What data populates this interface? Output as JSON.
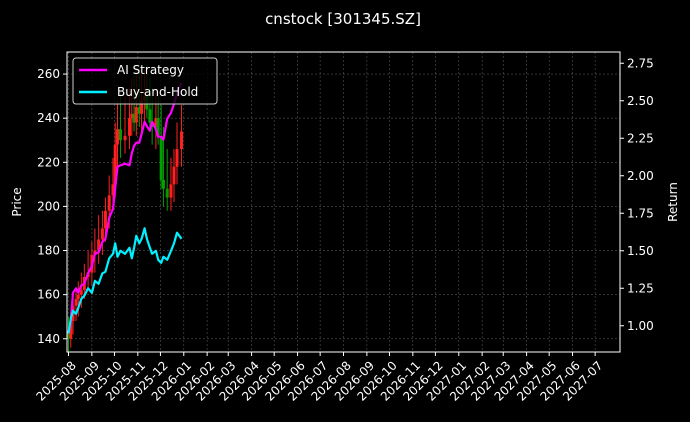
{
  "chart_data": {
    "type": "line",
    "title": "cnstock [301345.SZ]",
    "ylabel_left": "Price",
    "ylabel_right": "Return",
    "ylim_left": [
      134,
      270
    ],
    "ylim_right": [
      0.825,
      2.825
    ],
    "yticks_left": [
      140,
      160,
      180,
      200,
      220,
      240,
      260
    ],
    "yticks_right": [
      "1.00",
      "1.25",
      "1.50",
      "1.75",
      "2.00",
      "2.25",
      "2.50",
      "2.75"
    ],
    "xticks": [
      "2025-08",
      "2025-09",
      "2025-10",
      "2025-11",
      "2025-12",
      "2026-01",
      "2026-02",
      "2026-03",
      "2026-04",
      "2026-05",
      "2026-06",
      "2026-07",
      "2026-08",
      "2026-09",
      "2026-10",
      "2026-11",
      "2026-12",
      "2027-01",
      "2027-02",
      "2027-03",
      "2027-04",
      "2027-05",
      "2027-06",
      "2027-07"
    ],
    "grid": true,
    "legend_position": "top-left",
    "colors": {
      "background": "#000000",
      "ai": "#ff00ff",
      "bh": "#00f0ff",
      "up": "#ff2020",
      "down": "#00a000",
      "grid": "#555555"
    },
    "series": [
      {
        "name": "AI Strategy",
        "axis": "right",
        "x": [
          "2025-08-01",
          "2025-08-04",
          "2025-08-07",
          "2025-08-11",
          "2025-08-14",
          "2025-08-18",
          "2025-08-22",
          "2025-08-27",
          "2025-09-01",
          "2025-09-05",
          "2025-09-10",
          "2025-09-15",
          "2025-09-19",
          "2025-09-24",
          "2025-09-29",
          "2025-10-02",
          "2025-10-05",
          "2025-10-09",
          "2025-10-15",
          "2025-10-21",
          "2025-10-24",
          "2025-10-27",
          "2025-10-30",
          "2025-11-03",
          "2025-11-06",
          "2025-11-10",
          "2025-11-13",
          "2025-11-17",
          "2025-11-20",
          "2025-11-25",
          "2025-11-28",
          "2025-12-02",
          "2025-12-05",
          "2025-12-10",
          "2025-12-15",
          "2025-12-19",
          "2025-12-23",
          "2025-12-29"
        ],
        "values": [
          0.95,
          1.03,
          1.22,
          1.25,
          1.22,
          1.27,
          1.28,
          1.35,
          1.4,
          1.48,
          1.49,
          1.56,
          1.58,
          1.72,
          1.78,
          1.92,
          2.06,
          2.07,
          2.08,
          2.07,
          2.15,
          2.2,
          2.22,
          2.22,
          2.28,
          2.36,
          2.33,
          2.3,
          2.36,
          2.31,
          2.26,
          2.26,
          2.24,
          2.38,
          2.42,
          2.48,
          2.55,
          2.62
        ]
      },
      {
        "name": "Buy-and-Hold",
        "axis": "right",
        "x": [
          "2025-08-01",
          "2025-08-04",
          "2025-08-07",
          "2025-08-11",
          "2025-08-14",
          "2025-08-18",
          "2025-08-22",
          "2025-08-27",
          "2025-09-01",
          "2025-09-05",
          "2025-09-10",
          "2025-09-15",
          "2025-09-19",
          "2025-09-24",
          "2025-09-29",
          "2025-10-02",
          "2025-10-05",
          "2025-10-09",
          "2025-10-15",
          "2025-10-21",
          "2025-10-24",
          "2025-10-27",
          "2025-10-30",
          "2025-11-03",
          "2025-11-06",
          "2025-11-10",
          "2025-11-13",
          "2025-11-17",
          "2025-11-20",
          "2025-11-25",
          "2025-11-28",
          "2025-12-02",
          "2025-12-05",
          "2025-12-10",
          "2025-12-15",
          "2025-12-19",
          "2025-12-23",
          "2025-12-29"
        ],
        "values": [
          0.95,
          1.05,
          1.1,
          1.08,
          1.12,
          1.18,
          1.2,
          1.25,
          1.22,
          1.3,
          1.28,
          1.35,
          1.36,
          1.45,
          1.48,
          1.55,
          1.46,
          1.5,
          1.48,
          1.52,
          1.45,
          1.52,
          1.6,
          1.55,
          1.58,
          1.65,
          1.58,
          1.52,
          1.48,
          1.5,
          1.44,
          1.42,
          1.46,
          1.44,
          1.5,
          1.55,
          1.62,
          1.58
        ]
      }
    ],
    "candles": {
      "x": [
        "2025-08-01",
        "2025-08-04",
        "2025-08-07",
        "2025-08-11",
        "2025-08-14",
        "2025-08-18",
        "2025-08-22",
        "2025-08-27",
        "2025-09-01",
        "2025-09-05",
        "2025-09-10",
        "2025-09-15",
        "2025-09-19",
        "2025-09-24",
        "2025-09-29",
        "2025-10-02",
        "2025-10-05",
        "2025-10-09",
        "2025-10-15",
        "2025-10-21",
        "2025-10-24",
        "2025-10-27",
        "2025-10-30",
        "2025-11-03",
        "2025-11-06",
        "2025-11-10",
        "2025-11-13",
        "2025-11-17",
        "2025-11-20",
        "2025-11-25",
        "2025-11-28",
        "2025-12-02",
        "2025-12-05",
        "2025-12-10",
        "2025-12-15",
        "2025-12-19",
        "2025-12-23",
        "2025-12-29"
      ],
      "open": [
        143,
        140,
        148,
        155,
        158,
        160,
        162,
        168,
        170,
        178,
        180,
        185,
        190,
        198,
        205,
        210,
        228,
        235,
        230,
        232,
        240,
        242,
        238,
        245,
        242,
        248,
        250,
        244,
        238,
        236,
        240,
        232,
        212,
        208,
        204,
        210,
        218,
        226
      ],
      "high": [
        150,
        152,
        158,
        162,
        166,
        170,
        174,
        180,
        184,
        190,
        196,
        198,
        204,
        214,
        222,
        238,
        248,
        252,
        250,
        254,
        258,
        260,
        262,
        266,
        260,
        262,
        264,
        258,
        254,
        252,
        250,
        246,
        236,
        226,
        222,
        226,
        238,
        246
      ],
      "low": [
        134,
        136,
        142,
        148,
        150,
        154,
        158,
        162,
        164,
        170,
        174,
        178,
        184,
        190,
        198,
        204,
        216,
        222,
        224,
        226,
        232,
        234,
        232,
        236,
        234,
        238,
        240,
        234,
        228,
        226,
        228,
        208,
        200,
        198,
        198,
        202,
        210,
        218
      ],
      "close": [
        140,
        148,
        155,
        158,
        160,
        162,
        168,
        170,
        178,
        180,
        185,
        190,
        198,
        205,
        210,
        228,
        235,
        230,
        232,
        240,
        242,
        238,
        245,
        242,
        248,
        250,
        244,
        238,
        236,
        240,
        232,
        212,
        208,
        204,
        210,
        218,
        226,
        234
      ]
    }
  }
}
